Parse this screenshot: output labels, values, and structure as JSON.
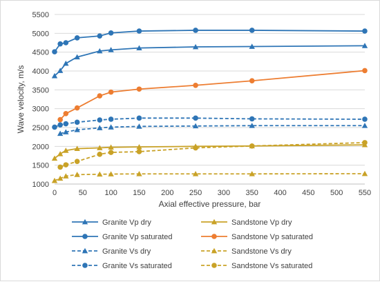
{
  "chart_data": {
    "type": "line",
    "title": "",
    "xlabel": "Axial effective pressure, bar",
    "ylabel": "Wave velocity, m/s",
    "xlim": [
      0,
      550
    ],
    "ylim": [
      1000,
      5500
    ],
    "xticks": [
      0,
      50,
      100,
      150,
      200,
      250,
      300,
      350,
      400,
      450,
      500,
      550
    ],
    "yticks": [
      1000,
      1500,
      2000,
      2500,
      3000,
      3500,
      4000,
      4500,
      5000,
      5500
    ],
    "grid": "horizontal",
    "legend_position": "bottom",
    "series": [
      {
        "name": "Granite Vp dry",
        "color": "#2e75b6",
        "marker": "triangle",
        "dash": false,
        "x": [
          0,
          10,
          20,
          40,
          80,
          100,
          150,
          250,
          350,
          550
        ],
        "y": [
          3870,
          4010,
          4200,
          4370,
          4530,
          4560,
          4610,
          4640,
          4650,
          4670
        ]
      },
      {
        "name": "Sandstone Vp dry",
        "color": "#c9a227",
        "marker": "triangle",
        "dash": false,
        "x": [
          0,
          10,
          20,
          40,
          80,
          100,
          150,
          250,
          350,
          550
        ],
        "y": [
          1680,
          1800,
          1890,
          1940,
          1960,
          1975,
          1985,
          2000,
          2010,
          2040
        ]
      },
      {
        "name": "Granite Vp saturated",
        "color": "#2e75b6",
        "marker": "circle",
        "dash": false,
        "x": [
          0,
          10,
          20,
          40,
          80,
          100,
          150,
          250,
          350,
          550
        ],
        "y": [
          4510,
          4720,
          4750,
          4880,
          4930,
          5010,
          5060,
          5080,
          5080,
          5060
        ]
      },
      {
        "name": "Sandstone Vp saturated",
        "color": "#ed7d31",
        "marker": "circle",
        "dash": false,
        "x": [
          10,
          20,
          40,
          80,
          100,
          150,
          250,
          350,
          550
        ],
        "y": [
          2710,
          2870,
          3020,
          3340,
          3440,
          3520,
          3620,
          3740,
          4010
        ]
      },
      {
        "name": "Granite Vs dry",
        "color": "#2e75b6",
        "marker": "triangle",
        "dash": true,
        "x": [
          10,
          20,
          40,
          80,
          100,
          150,
          250,
          350,
          550
        ],
        "y": [
          2340,
          2380,
          2440,
          2490,
          2510,
          2530,
          2540,
          2550,
          2550
        ]
      },
      {
        "name": "Sandstone Vs dry",
        "color": "#c9a227",
        "marker": "triangle",
        "dash": true,
        "x": [
          0,
          10,
          20,
          40,
          80,
          100,
          150,
          250,
          350,
          550
        ],
        "y": [
          1090,
          1150,
          1210,
          1250,
          1260,
          1265,
          1270,
          1270,
          1270,
          1275
        ]
      },
      {
        "name": "Granite Vs saturated",
        "color": "#2e75b6",
        "marker": "circle",
        "dash": true,
        "x": [
          0,
          10,
          20,
          40,
          80,
          100,
          150,
          250,
          350,
          550
        ],
        "y": [
          2510,
          2570,
          2600,
          2640,
          2700,
          2720,
          2750,
          2750,
          2730,
          2720
        ]
      },
      {
        "name": "Sandstone Vs saturated",
        "color": "#c9a227",
        "marker": "circle",
        "dash": true,
        "x": [
          10,
          20,
          40,
          80,
          100,
          150,
          250,
          350,
          550
        ],
        "y": [
          1450,
          1510,
          1600,
          1790,
          1840,
          1860,
          1960,
          2010,
          2100
        ]
      }
    ]
  }
}
